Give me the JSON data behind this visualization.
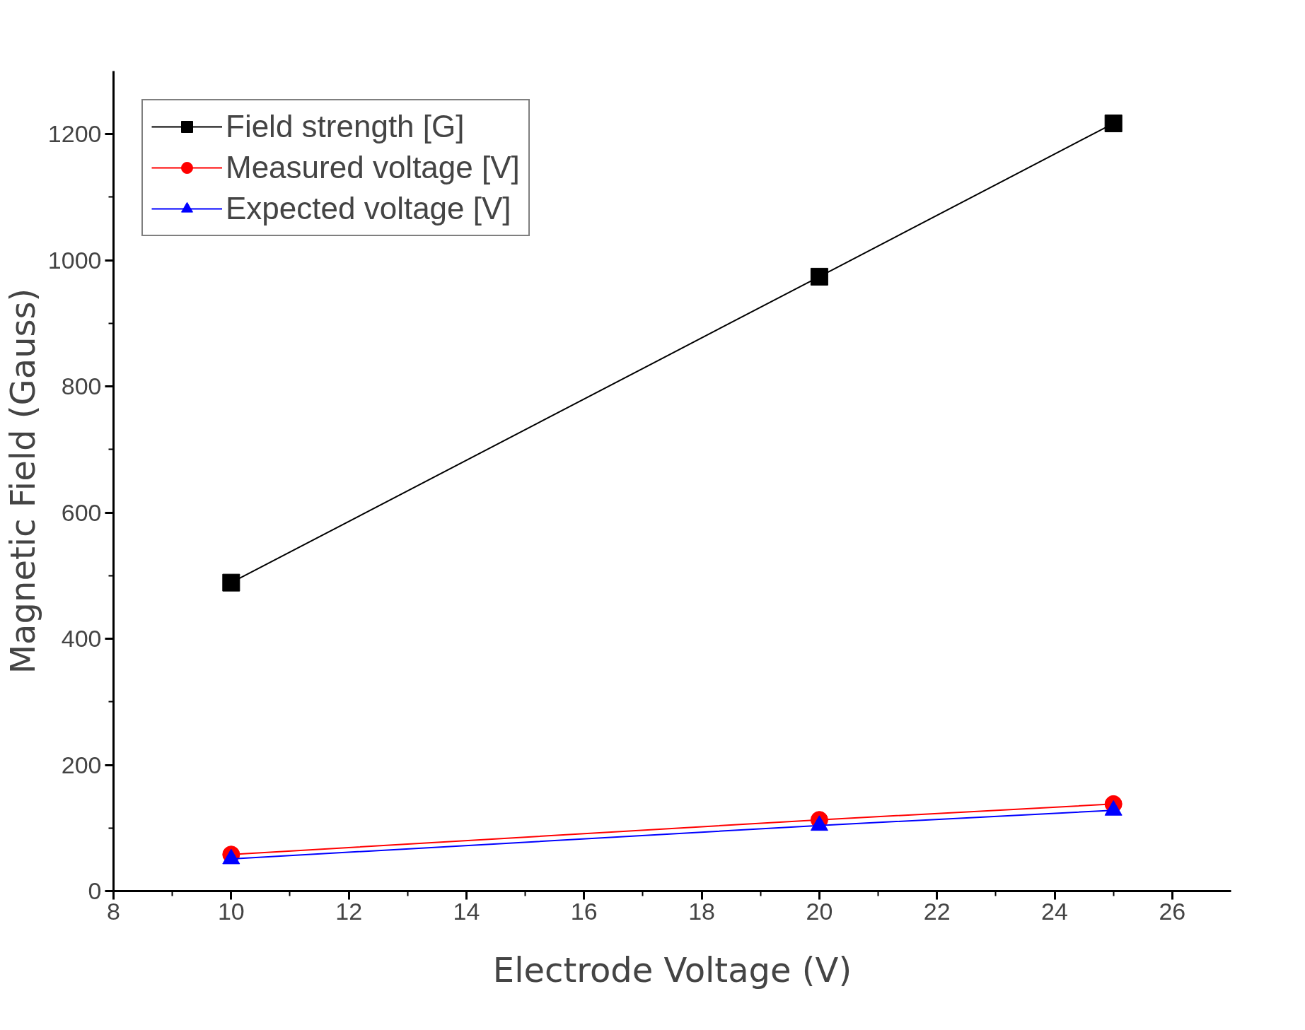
{
  "chart_data": {
    "type": "line",
    "xlabel": "Electrode Voltage (V)",
    "ylabel": "Magnetic Field (Gauss)",
    "x": [
      10,
      20,
      25
    ],
    "series": [
      {
        "name": "Field strength [G]",
        "color": "#000000",
        "marker": "square",
        "values": [
          489,
          974,
          1217
        ]
      },
      {
        "name": "Measured voltage [V]",
        "color": "#ff0000",
        "marker": "circle",
        "values": [
          58,
          113,
          138
        ]
      },
      {
        "name": "Expected voltage [V]",
        "color": "#0000ff",
        "marker": "triangle",
        "values": [
          51,
          104,
          128
        ]
      }
    ],
    "xlim": [
      8,
      27
    ],
    "xticks": [
      8,
      10,
      12,
      14,
      16,
      18,
      20,
      22,
      24,
      26
    ],
    "ylim": [
      0,
      1300
    ],
    "yticks": [
      0,
      200,
      400,
      600,
      800,
      1000,
      1200
    ],
    "grid": false,
    "legend": "top left",
    "line_style": "solid"
  }
}
